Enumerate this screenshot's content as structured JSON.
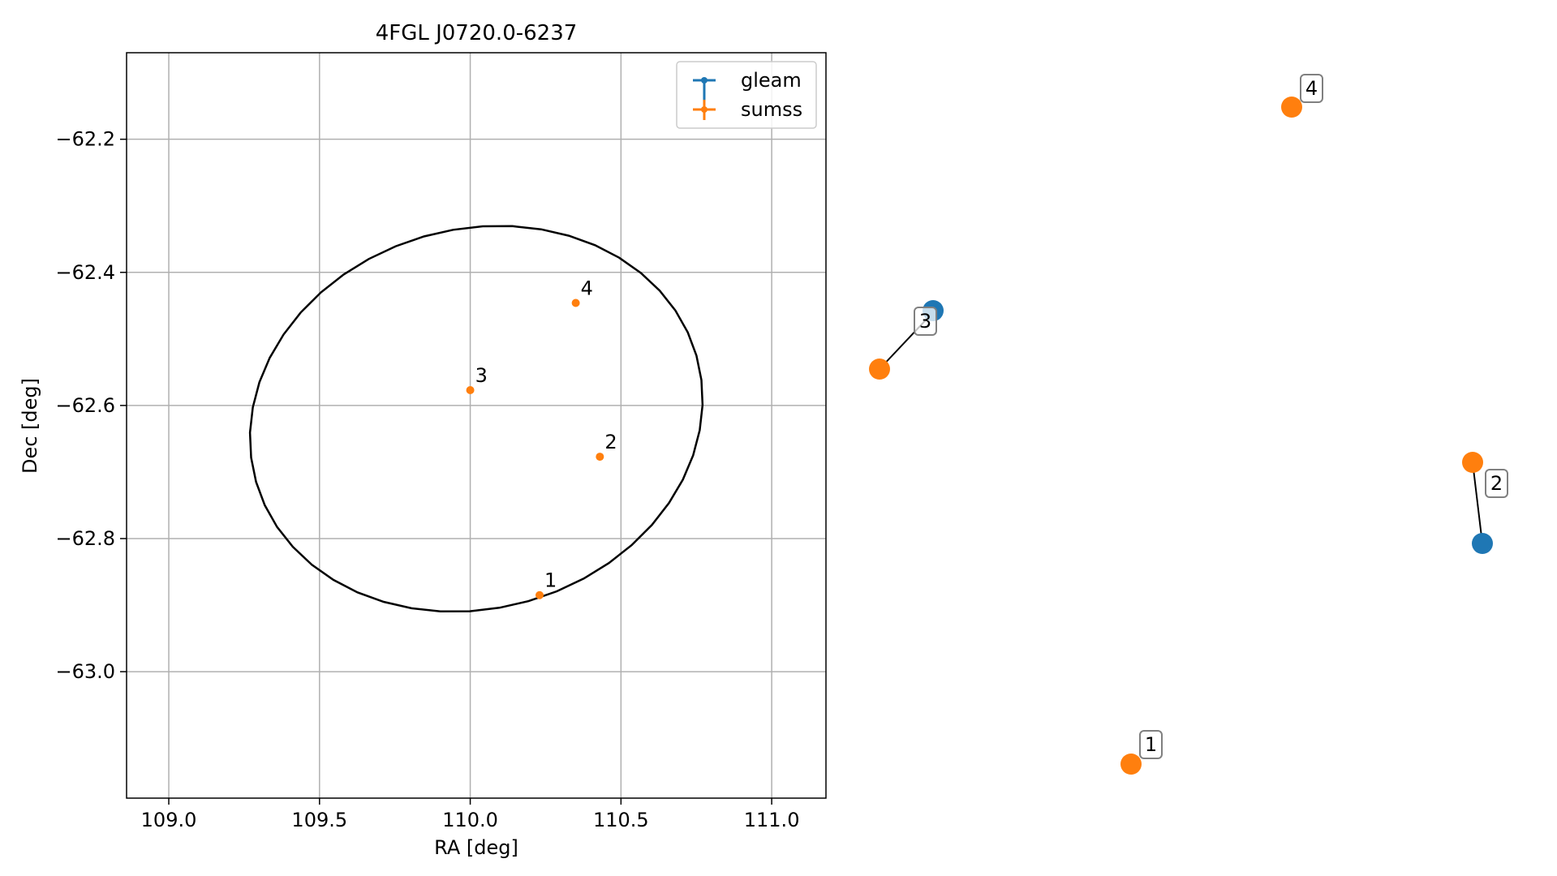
{
  "chart_data": {
    "type": "scatter",
    "title": "4FGL J0720.0-6237",
    "xlabel": "RA [deg]",
    "ylabel": "Dec [deg]",
    "xlim": [
      108.86,
      111.18
    ],
    "ylim": [
      -63.19,
      -62.07
    ],
    "xticks": [
      109.0,
      109.5,
      110.0,
      110.5,
      111.0
    ],
    "xtick_labels": [
      "109.0",
      "109.5",
      "110.0",
      "110.5",
      "111.0"
    ],
    "yticks": [
      -62.2,
      -62.4,
      -62.6,
      -62.8,
      -63.0
    ],
    "ytick_labels": [
      "−62.2",
      "−62.4",
      "−62.6",
      "−62.8",
      "−63.0"
    ],
    "grid": true,
    "legend_position": "top-right",
    "colors": {
      "gleam": "#1f77b4",
      "sumss": "#ff7f0e",
      "ellipse": "#000000",
      "grid": "#b0b0b0"
    },
    "legend": [
      {
        "label": "gleam",
        "color": "#1f77b4"
      },
      {
        "label": "sumss",
        "color": "#ff7f0e"
      }
    ],
    "ellipse": {
      "ra_center": 110.02,
      "dec_center": -62.62,
      "semi_axis_ra": 0.76,
      "semi_axis_dec": 0.285,
      "rotation_deg": -16
    },
    "series": [
      {
        "name": "sumss",
        "points": [
          {
            "label": "1",
            "ra": 110.23,
            "dec": -62.885
          },
          {
            "label": "2",
            "ra": 110.43,
            "dec": -62.677
          },
          {
            "label": "3",
            "ra": 110.0,
            "dec": -62.577
          },
          {
            "label": "4",
            "ra": 110.35,
            "dec": -62.446
          }
        ]
      },
      {
        "name": "gleam",
        "points": []
      }
    ],
    "zoom_panel": {
      "pairs": [
        {
          "label": "1",
          "sumss": true,
          "gleam": false
        },
        {
          "label": "2",
          "sumss": true,
          "gleam": true
        },
        {
          "label": "3",
          "sumss": true,
          "gleam": true
        },
        {
          "label": "4",
          "sumss": true,
          "gleam": false
        }
      ]
    }
  }
}
